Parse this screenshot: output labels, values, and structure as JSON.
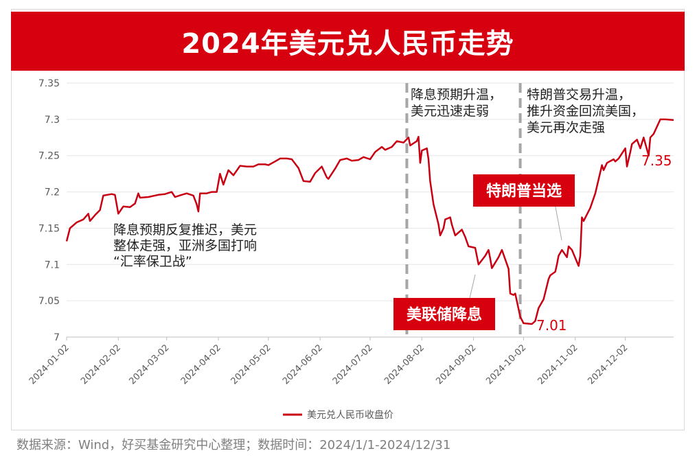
{
  "title": "2024年美元兑人民币走势",
  "source": "数据来源：Wind，好买基金研究中心整理；数据时间：2024/1/1-2024/12/31",
  "colors": {
    "accent": "#d7000f",
    "line": "#c80012",
    "grid": "#e6e6e6",
    "divider": "#a6a6a6"
  },
  "chart_data": {
    "type": "line",
    "title": "2024年美元兑人民币走势",
    "ylim": [
      7.0,
      7.35
    ],
    "yticks": [
      "7.35",
      "7.3",
      "7.25",
      "7.2",
      "7.15",
      "7.1",
      "7.05",
      "7"
    ],
    "xlim": [
      "2024-01-02",
      "2024-12-31"
    ],
    "xticks": [
      "2024-01-02",
      "2024-02-02",
      "2024-03-02",
      "2024-04-02",
      "2024-05-02",
      "2024-06-02",
      "2024-07-02",
      "2024-08-02",
      "2024-09-02",
      "2024-10-02",
      "2024-11-02",
      "2024-12-02"
    ],
    "legend": "bottom",
    "grid": true,
    "series": [
      {
        "name": "美元兑人民币收盘价",
        "points": [
          [
            "2024-01-02",
            7.132
          ],
          [
            "2024-01-04",
            7.15
          ],
          [
            "2024-01-08",
            7.158
          ],
          [
            "2024-01-12",
            7.162
          ],
          [
            "2024-01-15",
            7.17
          ],
          [
            "2024-01-16",
            7.16
          ],
          [
            "2024-01-19",
            7.168
          ],
          [
            "2024-01-22",
            7.175
          ],
          [
            "2024-01-24",
            7.195
          ],
          [
            "2024-01-29",
            7.197
          ],
          [
            "2024-01-31",
            7.196
          ],
          [
            "2024-02-02",
            7.17
          ],
          [
            "2024-02-05",
            7.18
          ],
          [
            "2024-02-09",
            7.179
          ],
          [
            "2024-02-12",
            7.184
          ],
          [
            "2024-02-14",
            7.198
          ],
          [
            "2024-02-15",
            7.192
          ],
          [
            "2024-02-20",
            7.193
          ],
          [
            "2024-02-26",
            7.196
          ],
          [
            "2024-03-01",
            7.197
          ],
          [
            "2024-03-05",
            7.2
          ],
          [
            "2024-03-07",
            7.193
          ],
          [
            "2024-03-11",
            7.196
          ],
          [
            "2024-03-14",
            7.198
          ],
          [
            "2024-03-18",
            7.195
          ],
          [
            "2024-03-20",
            7.183
          ],
          [
            "2024-03-21",
            7.173
          ],
          [
            "2024-03-22",
            7.198
          ],
          [
            "2024-03-26",
            7.198
          ],
          [
            "2024-03-29",
            7.2
          ],
          [
            "2024-04-01",
            7.2
          ],
          [
            "2024-04-03",
            7.225
          ],
          [
            "2024-04-05",
            7.21
          ],
          [
            "2024-04-08",
            7.23
          ],
          [
            "2024-04-11",
            7.223
          ],
          [
            "2024-04-15",
            7.236
          ],
          [
            "2024-04-19",
            7.235
          ],
          [
            "2024-04-23",
            7.235
          ],
          [
            "2024-04-26",
            7.238
          ],
          [
            "2024-04-30",
            7.238
          ],
          [
            "2024-05-02",
            7.237
          ],
          [
            "2024-05-06",
            7.242
          ],
          [
            "2024-05-09",
            7.246
          ],
          [
            "2024-05-13",
            7.246
          ],
          [
            "2024-05-16",
            7.245
          ],
          [
            "2024-05-20",
            7.233
          ],
          [
            "2024-05-23",
            7.215
          ],
          [
            "2024-05-27",
            7.214
          ],
          [
            "2024-05-30",
            7.226
          ],
          [
            "2024-06-03",
            7.235
          ],
          [
            "2024-06-06",
            7.22
          ],
          [
            "2024-06-07",
            7.218
          ],
          [
            "2024-06-11",
            7.232
          ],
          [
            "2024-06-14",
            7.244
          ],
          [
            "2024-06-18",
            7.246
          ],
          [
            "2024-06-21",
            7.243
          ],
          [
            "2024-06-25",
            7.244
          ],
          [
            "2024-06-28",
            7.248
          ],
          [
            "2024-07-02",
            7.245
          ],
          [
            "2024-07-05",
            7.255
          ],
          [
            "2024-07-09",
            7.262
          ],
          [
            "2024-07-11",
            7.258
          ],
          [
            "2024-07-15",
            7.262
          ],
          [
            "2024-07-18",
            7.27
          ],
          [
            "2024-07-22",
            7.268
          ],
          [
            "2024-07-25",
            7.275
          ],
          [
            "2024-07-26",
            7.264
          ],
          [
            "2024-07-30",
            7.27
          ],
          [
            "2024-07-31",
            7.276
          ],
          [
            "2024-08-01",
            7.24
          ],
          [
            "2024-08-02",
            7.257
          ],
          [
            "2024-08-05",
            7.26
          ],
          [
            "2024-08-06",
            7.245
          ],
          [
            "2024-08-07",
            7.215
          ],
          [
            "2024-08-09",
            7.183
          ],
          [
            "2024-08-12",
            7.155
          ],
          [
            "2024-08-13",
            7.14
          ],
          [
            "2024-08-15",
            7.15
          ],
          [
            "2024-08-16",
            7.162
          ],
          [
            "2024-08-19",
            7.165
          ],
          [
            "2024-08-20",
            7.155
          ],
          [
            "2024-08-22",
            7.14
          ],
          [
            "2024-08-26",
            7.148
          ],
          [
            "2024-08-28",
            7.138
          ],
          [
            "2024-08-30",
            7.125
          ],
          [
            "2024-09-03",
            7.123
          ],
          [
            "2024-09-05",
            7.1
          ],
          [
            "2024-09-09",
            7.112
          ],
          [
            "2024-09-11",
            7.12
          ],
          [
            "2024-09-12",
            7.108
          ],
          [
            "2024-09-13",
            7.095
          ],
          [
            "2024-09-17",
            7.11
          ],
          [
            "2024-09-19",
            7.12
          ],
          [
            "2024-09-23",
            7.094
          ],
          [
            "2024-09-24",
            7.06
          ],
          [
            "2024-09-26",
            7.058
          ],
          [
            "2024-09-27",
            7.06
          ],
          [
            "2024-09-30",
            7.028
          ],
          [
            "2024-10-02",
            7.019
          ],
          [
            "2024-10-07",
            7.018
          ],
          [
            "2024-10-09",
            7.022
          ],
          [
            "2024-10-11",
            7.04
          ],
          [
            "2024-10-14",
            7.052
          ],
          [
            "2024-10-17",
            7.08
          ],
          [
            "2024-10-18",
            7.085
          ],
          [
            "2024-10-21",
            7.09
          ],
          [
            "2024-10-22",
            7.1
          ],
          [
            "2024-10-23",
            7.112
          ],
          [
            "2024-10-25",
            7.12
          ],
          [
            "2024-10-28",
            7.11
          ],
          [
            "2024-10-29",
            7.125
          ],
          [
            "2024-10-31",
            7.12
          ],
          [
            "2024-11-04",
            7.098
          ],
          [
            "2024-11-05",
            7.112
          ],
          [
            "2024-11-06",
            7.165
          ],
          [
            "2024-11-07",
            7.16
          ],
          [
            "2024-11-11",
            7.178
          ],
          [
            "2024-11-14",
            7.198
          ],
          [
            "2024-11-18",
            7.237
          ],
          [
            "2024-11-19",
            7.23
          ],
          [
            "2024-11-21",
            7.24
          ],
          [
            "2024-11-25",
            7.245
          ],
          [
            "2024-11-26",
            7.242
          ],
          [
            "2024-11-28",
            7.246
          ],
          [
            "2024-12-02",
            7.26
          ],
          [
            "2024-12-03",
            7.235
          ],
          [
            "2024-12-05",
            7.255
          ],
          [
            "2024-12-06",
            7.266
          ],
          [
            "2024-12-09",
            7.272
          ],
          [
            "2024-12-11",
            7.26
          ],
          [
            "2024-12-13",
            7.275
          ],
          [
            "2024-12-16",
            7.25
          ],
          [
            "2024-12-17",
            7.275
          ],
          [
            "2024-12-19",
            7.28
          ],
          [
            "2024-12-20",
            7.285
          ],
          [
            "2024-12-23",
            7.3
          ],
          [
            "2024-12-26",
            7.3
          ],
          [
            "2024-12-31",
            7.299
          ]
        ]
      }
    ],
    "dividers": [
      "2024-07-24",
      "2024-09-30"
    ],
    "annotations": [
      {
        "id": "phase1",
        "lines": [
          "降息预期反复推迟，美元",
          "整体走强，亚洲多国打响",
          "“汇率保卫战”"
        ]
      },
      {
        "id": "phase2",
        "lines": [
          "降息预期升温，",
          "美元迅速走弱"
        ]
      },
      {
        "id": "phase3",
        "lines": [
          "特朗普交易升温，",
          "推升资金回流美国，",
          "美元再次走强"
        ]
      },
      {
        "id": "fed-cut",
        "text": "美联储降息",
        "date": "2024-09-18"
      },
      {
        "id": "trump-elected",
        "text": "特朗普当选",
        "date": "2024-11-06"
      },
      {
        "id": "low-value",
        "text": "7.01"
      },
      {
        "id": "high-value",
        "text": "7.35"
      }
    ]
  }
}
